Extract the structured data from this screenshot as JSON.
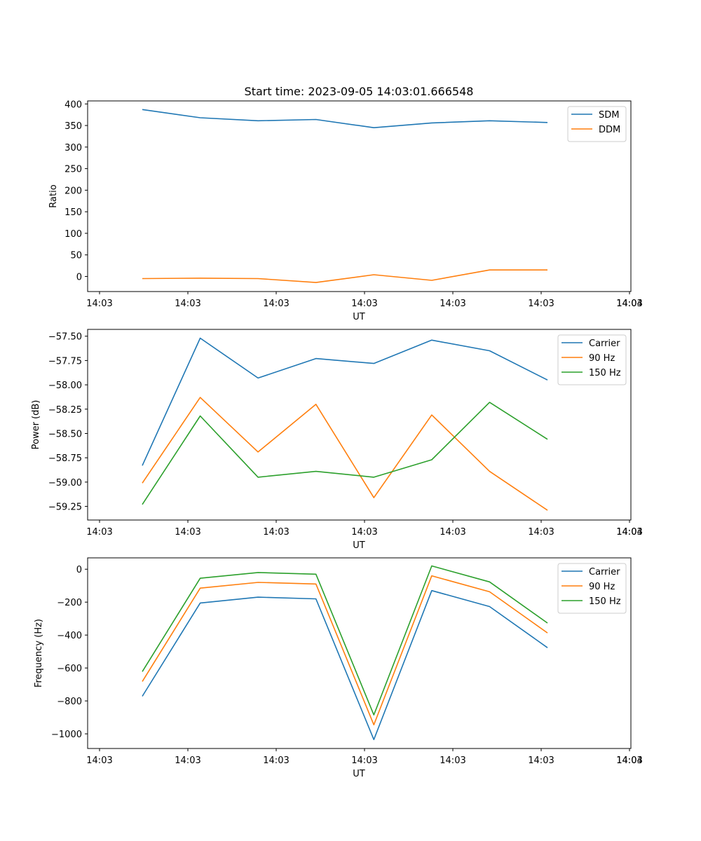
{
  "chart_data": [
    {
      "type": "line",
      "title": "Start time: 2023-09-05 14:03:01.666548",
      "xlabel": "UT",
      "ylabel": "Ratio",
      "x_tick_labels": [
        "14:03",
        "14:03",
        "14:03",
        "14:03",
        "14:03",
        "14:03",
        "14:03",
        "14:04"
      ],
      "y_ticks": [
        0,
        50,
        100,
        150,
        200,
        250,
        300,
        350,
        400
      ],
      "y_tick_labels": [
        "0",
        "50",
        "100",
        "150",
        "200",
        "250",
        "300",
        "350",
        "400"
      ],
      "ylim": [
        -35,
        407
      ],
      "x": [
        1,
        2,
        3,
        4,
        5,
        6,
        7,
        8
      ],
      "xlim": [
        0,
        9
      ],
      "legend": "top-right",
      "series": [
        {
          "name": "SDM",
          "color": "#1f77b4",
          "values": [
            387,
            368,
            361,
            364,
            345,
            356,
            361,
            357
          ]
        },
        {
          "name": "DDM",
          "color": "#ff7f0e",
          "values": [
            -5,
            -4,
            -5,
            -14,
            4,
            -9,
            15,
            15
          ]
        }
      ]
    },
    {
      "type": "line",
      "title": "",
      "xlabel": "UT",
      "ylabel": "Power (dB)",
      "x_tick_labels": [
        "14:03",
        "14:03",
        "14:03",
        "14:03",
        "14:03",
        "14:03",
        "14:03",
        "14:04"
      ],
      "y_ticks": [
        -59.25,
        -59.0,
        -58.75,
        -58.5,
        -58.25,
        -58.0,
        -57.75,
        -57.5
      ],
      "y_tick_labels": [
        "−59.25",
        "−59.00",
        "−58.75",
        "−58.50",
        "−58.25",
        "−58.00",
        "−57.75",
        "−57.50"
      ],
      "ylim": [
        -59.39,
        -57.43
      ],
      "x": [
        1,
        2,
        3,
        4,
        5,
        6,
        7,
        8
      ],
      "xlim": [
        0,
        9
      ],
      "legend": "top-right",
      "series": [
        {
          "name": "Carrier",
          "color": "#1f77b4",
          "values": [
            -58.83,
            -57.52,
            -57.93,
            -57.73,
            -57.78,
            -57.54,
            -57.65,
            -57.95
          ]
        },
        {
          "name": "90 Hz",
          "color": "#ff7f0e",
          "values": [
            -59.01,
            -58.13,
            -58.69,
            -58.2,
            -59.16,
            -58.31,
            -58.89,
            -59.29
          ]
        },
        {
          "name": "150 Hz",
          "color": "#2ca02c",
          "values": [
            -59.23,
            -58.32,
            -58.95,
            -58.89,
            -58.95,
            -58.77,
            -58.18,
            -58.56
          ]
        }
      ]
    },
    {
      "type": "line",
      "title": "",
      "xlabel": "UT",
      "ylabel": "Frequency (Hz)",
      "x_tick_labels": [
        "14:03",
        "14:03",
        "14:03",
        "14:03",
        "14:03",
        "14:03",
        "14:03",
        "14:04"
      ],
      "y_ticks": [
        -1000,
        -800,
        -600,
        -400,
        -200,
        0
      ],
      "y_tick_labels": [
        "−1000",
        "−800",
        "−600",
        "−400",
        "−200",
        "0"
      ],
      "ylim": [
        -1089,
        69
      ],
      "x": [
        1,
        2,
        3,
        4,
        5,
        6,
        7,
        8
      ],
      "xlim": [
        0,
        9
      ],
      "legend": "top-right",
      "series": [
        {
          "name": "Carrier",
          "color": "#1f77b4",
          "values": [
            -772,
            -205,
            -170,
            -180,
            -1035,
            -130,
            -227,
            -477
          ]
        },
        {
          "name": "90 Hz",
          "color": "#ff7f0e",
          "values": [
            -682,
            -115,
            -80,
            -90,
            -945,
            -40,
            -137,
            -387
          ]
        },
        {
          "name": "150 Hz",
          "color": "#2ca02c",
          "values": [
            -622,
            -55,
            -20,
            -30,
            -885,
            20,
            -77,
            -327
          ]
        }
      ]
    }
  ]
}
